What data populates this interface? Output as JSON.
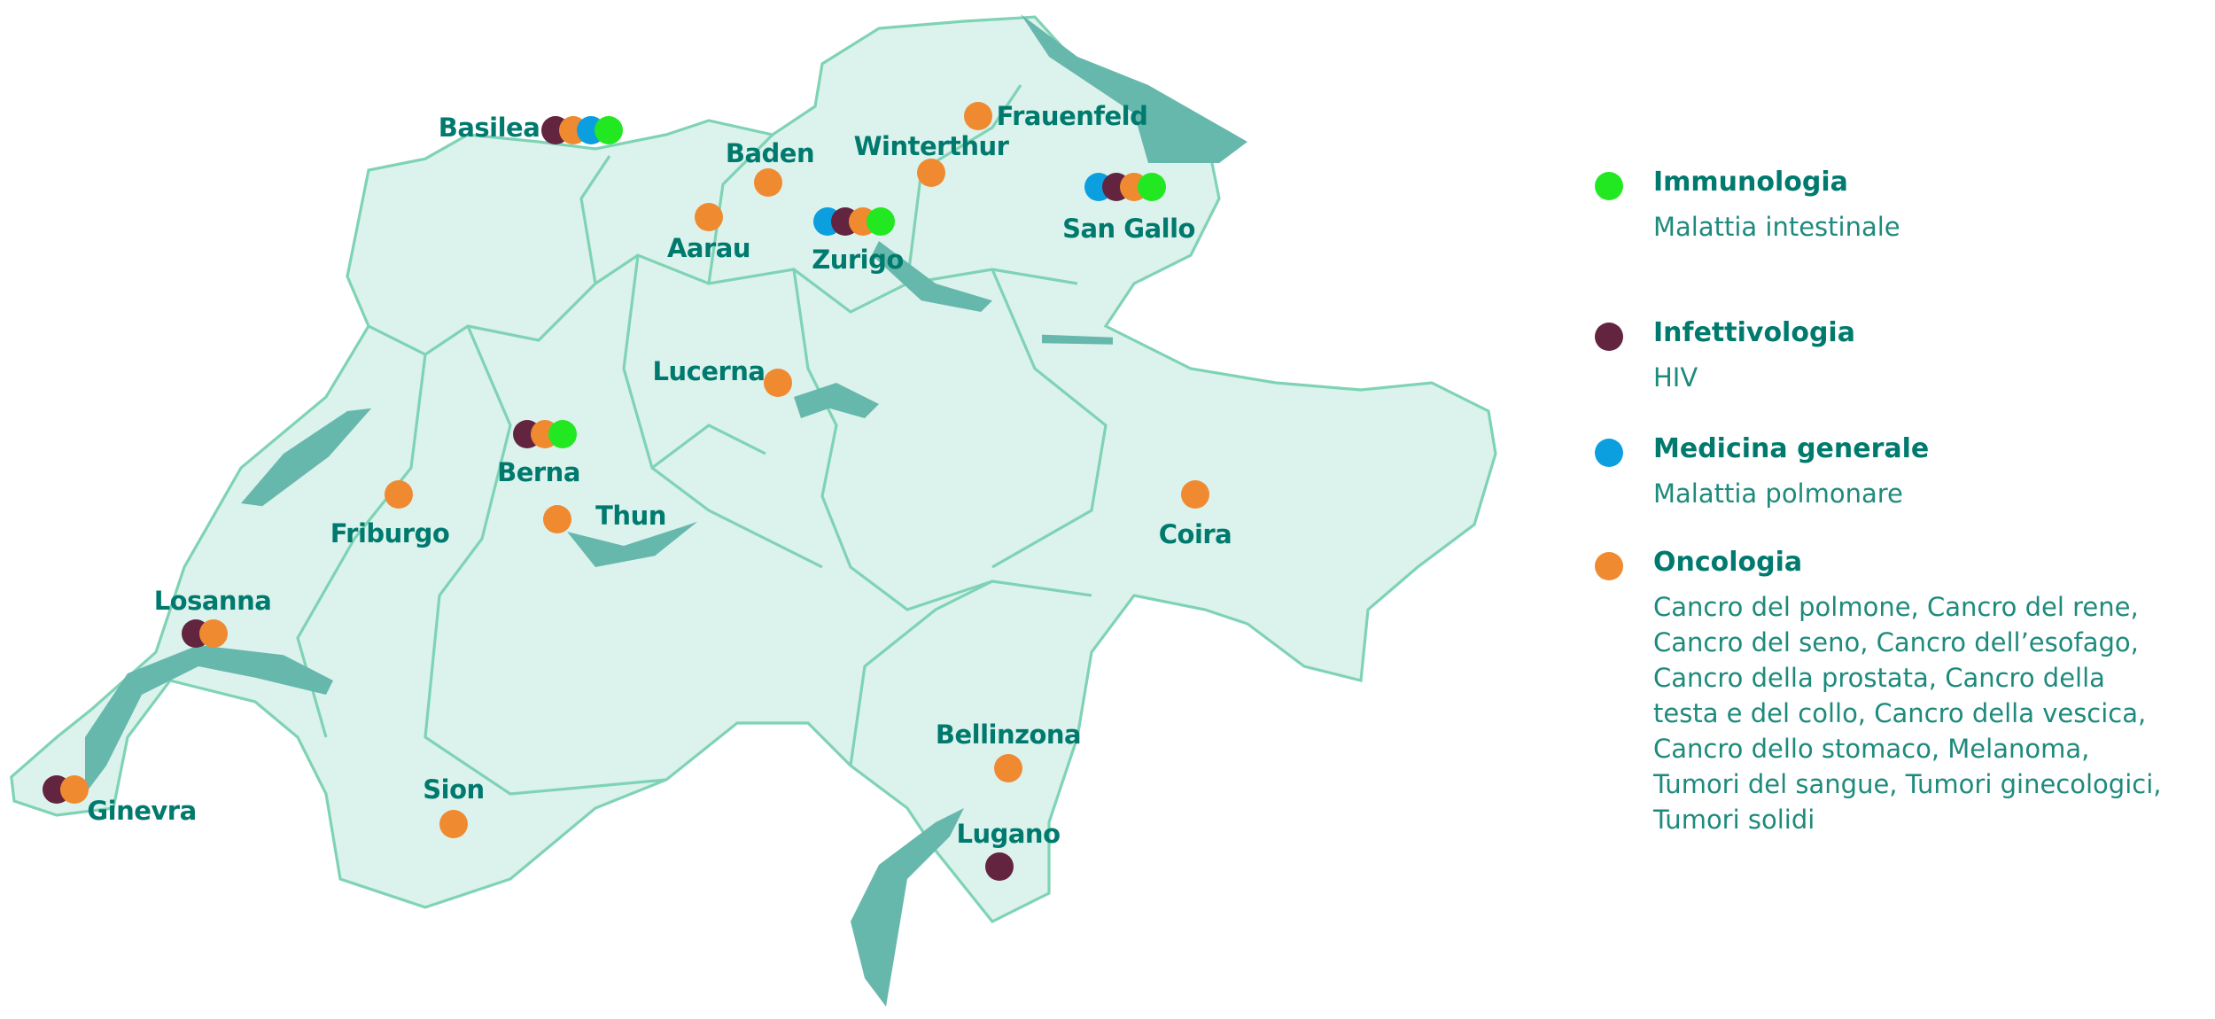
{
  "colors": {
    "Immunologia": "#22e822",
    "Infettivologia": "#63243f",
    "Medicina generale": "#0b9fe0",
    "Oncologia": "#f08a30",
    "text": "#007a6e",
    "land": "#dcf2ec",
    "border": "#7fd3b5",
    "lake": "#66b8ad"
  },
  "legend": [
    {
      "title": "Immunologia",
      "desc": "Malattia intestinale"
    },
    {
      "title": "Infettivologia",
      "desc": "HIV"
    },
    {
      "title": "Medicina generale",
      "desc": "Malattia polmonare"
    },
    {
      "title": "Oncologia",
      "desc": "Cancro del polmone, Cancro del rene, Cancro del seno, Cancro dell’esofago, Cancro della prostata, Cancro della testa e del collo, Cancro della vescica, Cancro dello stomaco, Melanoma, Tumori del sangue, Tumori ginecologici, Tumori solidi"
    }
  ],
  "cities": [
    {
      "name": "Basilea",
      "categories": [
        "Infettivologia",
        "Oncologia",
        "Medicina generale",
        "Immunologia"
      ]
    },
    {
      "name": "Baden",
      "categories": [
        "Oncologia"
      ]
    },
    {
      "name": "Winterthur",
      "categories": [
        "Oncologia"
      ]
    },
    {
      "name": "Frauenfeld",
      "categories": [
        "Oncologia"
      ]
    },
    {
      "name": "Aarau",
      "categories": [
        "Oncologia"
      ]
    },
    {
      "name": "Zurigo",
      "categories": [
        "Medicina generale",
        "Infettivologia",
        "Oncologia",
        "Immunologia"
      ]
    },
    {
      "name": "San Gallo",
      "categories": [
        "Medicina generale",
        "Infettivologia",
        "Oncologia",
        "Immunologia"
      ]
    },
    {
      "name": "Lucerna",
      "categories": [
        "Oncologia"
      ]
    },
    {
      "name": "Berna",
      "categories": [
        "Infettivologia",
        "Oncologia",
        "Immunologia"
      ]
    },
    {
      "name": "Thun",
      "categories": [
        "Oncologia"
      ]
    },
    {
      "name": "Friburgo",
      "categories": [
        "Oncologia"
      ]
    },
    {
      "name": "Coira",
      "categories": [
        "Oncologia"
      ]
    },
    {
      "name": "Losanna",
      "categories": [
        "Infettivologia",
        "Oncologia"
      ]
    },
    {
      "name": "Ginevra",
      "categories": [
        "Infettivologia",
        "Oncologia"
      ]
    },
    {
      "name": "Sion",
      "categories": [
        "Oncologia"
      ]
    },
    {
      "name": "Bellinzona",
      "categories": [
        "Oncologia"
      ]
    },
    {
      "name": "Lugano",
      "categories": [
        "Infettivologia"
      ]
    }
  ]
}
